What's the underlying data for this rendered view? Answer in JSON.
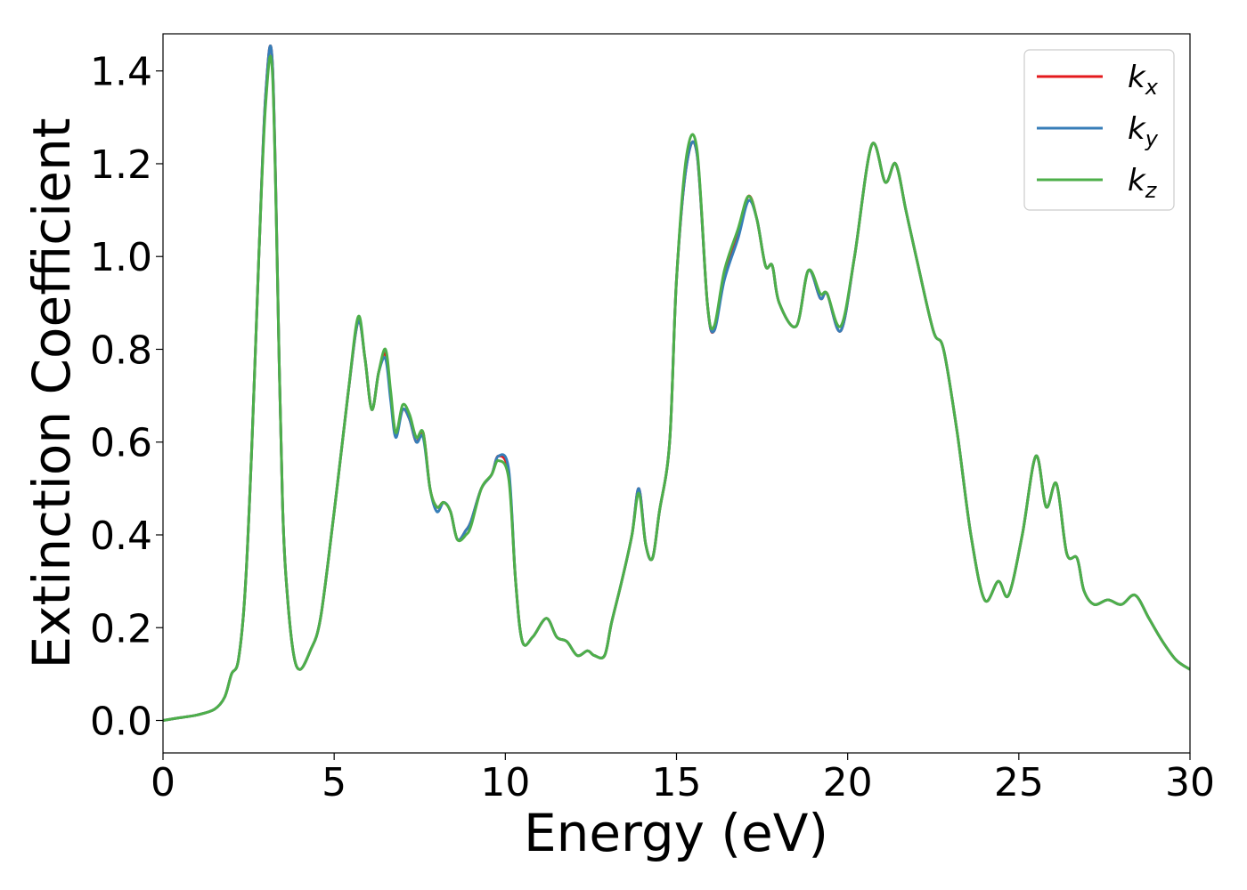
{
  "chart_data": {
    "type": "line",
    "title": "",
    "xlabel": "Energy (eV)",
    "ylabel": "Extinction Coefficient",
    "xlim": [
      0,
      30
    ],
    "ylim": [
      -0.07,
      1.48
    ],
    "xticks": [
      0,
      5,
      10,
      15,
      20,
      25,
      30
    ],
    "xtick_labels": [
      "0",
      "5",
      "10",
      "15",
      "20",
      "25",
      "30"
    ],
    "yticks": [
      0.0,
      0.2,
      0.4,
      0.6,
      0.8,
      1.0,
      1.2,
      1.4
    ],
    "ytick_labels": [
      "0.0",
      "0.2",
      "0.4",
      "0.6",
      "0.8",
      "1.0",
      "1.2",
      "1.4"
    ],
    "grid": false,
    "legend_position": "top-right",
    "x": [
      0,
      0.5,
      1.0,
      1.5,
      1.8,
      2.0,
      2.2,
      2.4,
      2.6,
      2.8,
      3.0,
      3.2,
      3.4,
      3.5,
      3.6,
      3.8,
      4.0,
      4.3,
      4.6,
      5.0,
      5.4,
      5.7,
      5.9,
      6.1,
      6.3,
      6.5,
      6.65,
      6.8,
      7.0,
      7.2,
      7.4,
      7.6,
      7.8,
      8.0,
      8.2,
      8.4,
      8.6,
      8.85,
      9.0,
      9.3,
      9.6,
      9.8,
      10.1,
      10.3,
      10.5,
      10.8,
      11.2,
      11.5,
      11.8,
      12.1,
      12.4,
      12.6,
      12.9,
      13.1,
      13.4,
      13.7,
      13.9,
      14.1,
      14.3,
      14.5,
      14.8,
      15.0,
      15.3,
      15.6,
      15.9,
      16.1,
      16.4,
      16.8,
      17.1,
      17.35,
      17.6,
      17.8,
      18.0,
      18.5,
      18.85,
      19.2,
      19.4,
      19.8,
      20.2,
      20.7,
      21.1,
      21.4,
      21.7,
      22.0,
      22.5,
      22.8,
      23.2,
      23.6,
      24.0,
      24.4,
      24.7,
      25.1,
      25.5,
      25.8,
      26.1,
      26.4,
      26.7,
      26.9,
      27.2,
      27.6,
      28.0,
      28.4,
      28.8,
      29.2,
      29.6,
      30.0
    ],
    "series": [
      {
        "name": "kx",
        "color": "#e41a1c",
        "values": [
          0.0,
          0.006,
          0.012,
          0.024,
          0.05,
          0.1,
          0.13,
          0.28,
          0.6,
          1.0,
          1.35,
          1.41,
          0.75,
          0.45,
          0.3,
          0.15,
          0.11,
          0.15,
          0.22,
          0.45,
          0.7,
          0.86,
          0.78,
          0.67,
          0.75,
          0.79,
          0.7,
          0.62,
          0.67,
          0.65,
          0.6,
          0.62,
          0.5,
          0.46,
          0.47,
          0.45,
          0.39,
          0.41,
          0.43,
          0.5,
          0.53,
          0.57,
          0.53,
          0.3,
          0.17,
          0.18,
          0.22,
          0.18,
          0.17,
          0.14,
          0.15,
          0.14,
          0.14,
          0.21,
          0.3,
          0.4,
          0.5,
          0.38,
          0.35,
          0.45,
          0.6,
          0.95,
          1.2,
          1.22,
          0.9,
          0.84,
          0.96,
          1.05,
          1.13,
          1.08,
          0.98,
          0.98,
          0.9,
          0.85,
          0.97,
          0.91,
          0.92,
          0.84,
          1.0,
          1.24,
          1.16,
          1.2,
          1.1,
          1.0,
          0.84,
          0.8,
          0.62,
          0.4,
          0.26,
          0.3,
          0.27,
          0.4,
          0.57,
          0.46,
          0.51,
          0.36,
          0.35,
          0.28,
          0.25,
          0.26,
          0.25,
          0.27,
          0.22,
          0.17,
          0.13,
          0.11
        ]
      },
      {
        "name": "ky",
        "color": "#377eb8",
        "values": [
          0.0,
          0.006,
          0.012,
          0.024,
          0.05,
          0.1,
          0.13,
          0.28,
          0.6,
          1.0,
          1.35,
          1.41,
          0.75,
          0.45,
          0.3,
          0.15,
          0.11,
          0.15,
          0.22,
          0.45,
          0.7,
          0.86,
          0.78,
          0.67,
          0.75,
          0.78,
          0.69,
          0.61,
          0.67,
          0.65,
          0.6,
          0.61,
          0.5,
          0.45,
          0.47,
          0.45,
          0.39,
          0.41,
          0.43,
          0.5,
          0.53,
          0.57,
          0.54,
          0.3,
          0.17,
          0.18,
          0.22,
          0.18,
          0.17,
          0.14,
          0.15,
          0.14,
          0.14,
          0.21,
          0.3,
          0.4,
          0.5,
          0.38,
          0.35,
          0.45,
          0.6,
          0.95,
          1.2,
          1.22,
          0.9,
          0.84,
          0.95,
          1.04,
          1.12,
          1.08,
          0.98,
          0.98,
          0.9,
          0.85,
          0.97,
          0.91,
          0.92,
          0.84,
          1.0,
          1.24,
          1.16,
          1.2,
          1.1,
          1.0,
          0.84,
          0.8,
          0.62,
          0.4,
          0.26,
          0.3,
          0.27,
          0.4,
          0.57,
          0.46,
          0.51,
          0.36,
          0.35,
          0.28,
          0.25,
          0.26,
          0.25,
          0.27,
          0.22,
          0.17,
          0.13,
          0.11
        ]
      },
      {
        "name": "kz",
        "color": "#4daf4a",
        "values": [
          0.0,
          0.006,
          0.012,
          0.024,
          0.05,
          0.1,
          0.13,
          0.28,
          0.6,
          1.0,
          1.33,
          1.39,
          0.75,
          0.45,
          0.3,
          0.15,
          0.11,
          0.15,
          0.22,
          0.45,
          0.7,
          0.87,
          0.78,
          0.67,
          0.75,
          0.8,
          0.71,
          0.62,
          0.68,
          0.66,
          0.61,
          0.62,
          0.5,
          0.46,
          0.47,
          0.45,
          0.39,
          0.4,
          0.42,
          0.5,
          0.53,
          0.56,
          0.52,
          0.3,
          0.17,
          0.18,
          0.22,
          0.18,
          0.17,
          0.14,
          0.15,
          0.14,
          0.14,
          0.21,
          0.3,
          0.4,
          0.49,
          0.38,
          0.35,
          0.45,
          0.6,
          0.95,
          1.22,
          1.23,
          0.9,
          0.85,
          0.97,
          1.06,
          1.13,
          1.08,
          0.98,
          0.98,
          0.9,
          0.85,
          0.97,
          0.92,
          0.92,
          0.85,
          1.0,
          1.24,
          1.16,
          1.2,
          1.1,
          1.0,
          0.84,
          0.8,
          0.62,
          0.4,
          0.26,
          0.3,
          0.27,
          0.4,
          0.57,
          0.46,
          0.51,
          0.36,
          0.35,
          0.28,
          0.25,
          0.26,
          0.25,
          0.27,
          0.22,
          0.17,
          0.13,
          0.11
        ]
      }
    ],
    "legend": [
      {
        "symbol": "k",
        "sub": "x"
      },
      {
        "symbol": "k",
        "sub": "y"
      },
      {
        "symbol": "k",
        "sub": "z"
      }
    ]
  }
}
